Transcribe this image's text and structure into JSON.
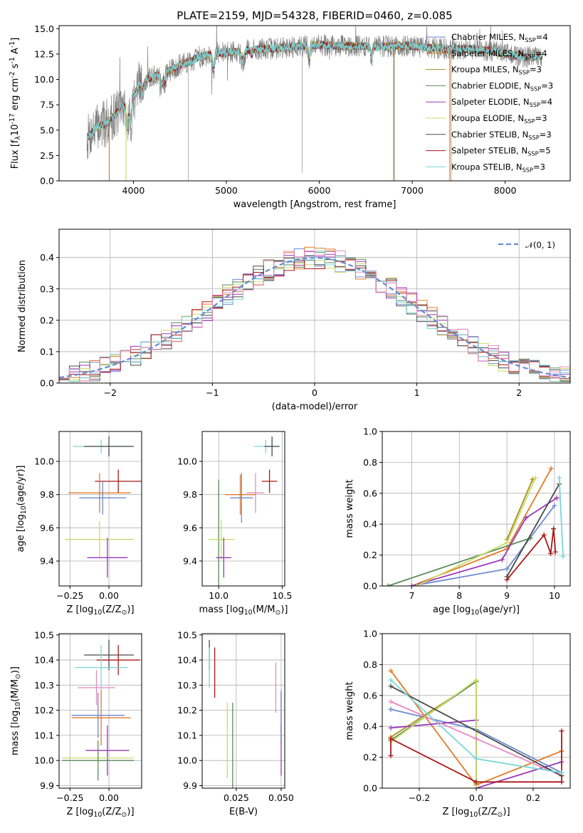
{
  "chart_data": [
    {
      "id": "spectrum",
      "type": "line",
      "title": "PLATE=2159, MJD=54328, FIBERID=0460, z=0.085",
      "xlabel": "wavelength [Angstrom, rest frame]",
      "ylabel": "Flux [f$_{\\lambda}$10$^{-17}$ erg cm$^{-2}$ s$^{-1}$ A$^{-1}$]",
      "xlim": [
        3200,
        8700
      ],
      "ylim": [
        0,
        15.3
      ],
      "xticks": [
        4000,
        5000,
        6000,
        7000,
        8000
      ],
      "xtick_labels": [
        "4000",
        "5000",
        "6000",
        "7000",
        "8000"
      ],
      "yticks": [
        0,
        2.5,
        5,
        7.5,
        10,
        12.5,
        15
      ],
      "ytick_labels": [
        "0.0",
        "2.5",
        "5.0",
        "7.5",
        "10.0",
        "12.5",
        "15.0"
      ],
      "continuum": [
        [
          3500,
          4.2
        ],
        [
          3600,
          5.3
        ],
        [
          3700,
          5.6
        ],
        [
          3800,
          6.6
        ],
        [
          3900,
          7.4
        ],
        [
          4000,
          9.0
        ],
        [
          4100,
          9.8
        ],
        [
          4200,
          10.2
        ],
        [
          4300,
          10.6
        ],
        [
          4400,
          10.9
        ],
        [
          4500,
          11.4
        ],
        [
          4600,
          11.7
        ],
        [
          4700,
          12.2
        ],
        [
          4800,
          12.4
        ],
        [
          4900,
          12.6
        ],
        [
          5000,
          12.6
        ],
        [
          5200,
          12.9
        ],
        [
          5400,
          13.0
        ],
        [
          5600,
          13.1
        ],
        [
          5800,
          13.3
        ],
        [
          6000,
          13.4
        ],
        [
          6200,
          13.3
        ],
        [
          6400,
          13.3
        ],
        [
          6600,
          13.2
        ],
        [
          6800,
          13.3
        ],
        [
          7000,
          13.3
        ],
        [
          7200,
          13.1
        ],
        [
          7400,
          13.0
        ],
        [
          7600,
          13.0
        ],
        [
          7800,
          12.9
        ],
        [
          8000,
          12.5
        ],
        [
          8200,
          12.2
        ],
        [
          8400,
          12.3
        ]
      ],
      "legend_position": "upper-right",
      "series": [
        {
          "name": "Chabrier MILES, N$_{SSP}$=4",
          "color": "#6a8ad0"
        },
        {
          "name": "Salpeter MILES, N$_{SSP}$=4",
          "color": "#e07b28"
        },
        {
          "name": "Kroupa MILES, N$_{SSP}$=3",
          "color": "#a89018"
        },
        {
          "name": "Chabrier ELODIE, N$_{SSP}$=3",
          "color": "#5a8a5a"
        },
        {
          "name": "Salpeter ELODIE, N$_{SSP}$=4",
          "color": "#9a38b8"
        },
        {
          "name": "Kroupa ELODIE, N$_{SSP}$=3",
          "color": "#c8dc6a"
        },
        {
          "name": "Chabrier STELIB, N$_{SSP}$=3",
          "color": "#4a4a4a"
        },
        {
          "name": "Salpeter STELIB, N$_{SSP}$=5",
          "color": "#aa1818"
        },
        {
          "name": "Kroupa STELIB, N$_{SSP}$=3",
          "color": "#7ad6d6"
        }
      ]
    },
    {
      "id": "residuals",
      "type": "line",
      "xlabel": "(data-model)/error",
      "ylabel": "Normed distribution",
      "xlim": [
        -2.5,
        2.5
      ],
      "ylim": [
        0,
        0.49
      ],
      "xticks": [
        -2,
        -1,
        0,
        1,
        2
      ],
      "xtick_labels": [
        "−2",
        "−1",
        "0",
        "1",
        "2"
      ],
      "yticks": [
        0,
        0.1,
        0.2,
        0.3,
        0.4
      ],
      "ytick_labels": [
        "0.0",
        "0.1",
        "0.2",
        "0.3",
        "0.4"
      ],
      "grid": true,
      "reference": {
        "name": "$\\mathcal{N}(0,1)$",
        "color": "#6a8ad0",
        "style": "dashed"
      }
    },
    {
      "id": "age-vs-Z",
      "type": "scatter",
      "xlabel": "Z [log$_{10}$(Z/Z$_\\odot$)]",
      "ylabel": "age  [log$_{10}$(age/yr)]",
      "xlim": [
        -0.32,
        0.21
      ],
      "ylim": [
        9.25,
        10.18
      ],
      "xticks": [
        -0.25,
        0.0
      ],
      "xtick_labels": [
        "−0.25",
        "0.00"
      ],
      "yticks": [
        9.4,
        9.6,
        9.8,
        10.0
      ],
      "ytick_labels": [
        "9.4",
        "9.6",
        "9.8",
        "10.0"
      ],
      "grid": true,
      "points": [
        {
          "x": -0.05,
          "y": 10.09,
          "xerr": 0.18,
          "yerr": 0.04,
          "color": "#7ad6d6"
        },
        {
          "x": 0.0,
          "y": 10.09,
          "xerr": 0.16,
          "yerr": 0.06,
          "color": "#4a4a4a"
        },
        {
          "x": 0.06,
          "y": 9.88,
          "xerr": 0.15,
          "yerr": 0.07,
          "color": "#aa1818"
        },
        {
          "x": -0.06,
          "y": 9.81,
          "xerr": 0.2,
          "yerr": 0.12,
          "color": "#e07b28"
        },
        {
          "x": -0.04,
          "y": 9.78,
          "xerr": 0.15,
          "yerr": 0.1,
          "color": "#6a8ad0"
        },
        {
          "x": -0.06,
          "y": 9.53,
          "xerr": 0.22,
          "yerr": 0.11,
          "color": "#c8dc6a"
        },
        {
          "x": -0.01,
          "y": 9.42,
          "xerr": 0.13,
          "yerr": 0.12,
          "color": "#9a38b8"
        }
      ]
    },
    {
      "id": "age-vs-mass",
      "type": "scatter",
      "xlabel": "mass [log$_{10}$(M/M$_\\odot$)]",
      "xlim": [
        9.87,
        10.52
      ],
      "ylim": [
        9.25,
        10.18
      ],
      "xticks": [
        10.0,
        10.5
      ],
      "xtick_labels": [
        "10.0",
        "10.5"
      ],
      "yticks": [
        9.4,
        9.6,
        9.8,
        10.0
      ],
      "ytick_labels": [
        "9.4",
        "9.6",
        "9.8",
        "10.0"
      ],
      "grid": true,
      "points": [
        {
          "x": 10.37,
          "y": 10.09,
          "xerr": 0.09,
          "yerr": 0.04,
          "color": "#7ad6d6"
        },
        {
          "x": 10.42,
          "y": 10.09,
          "xerr": 0.06,
          "yerr": 0.06,
          "color": "#4a4a4a"
        },
        {
          "x": 10.4,
          "y": 9.88,
          "xerr": 0.06,
          "yerr": 0.07,
          "color": "#aa1818"
        },
        {
          "x": 10.29,
          "y": 9.81,
          "xerr": 0.07,
          "yerr": 0.12,
          "color": "#e88ac0"
        },
        {
          "x": 10.17,
          "y": 9.8,
          "xerr": 0.12,
          "yerr": 0.12,
          "color": "#e07b28"
        },
        {
          "x": 10.18,
          "y": 9.78,
          "xerr": 0.09,
          "yerr": 0.15,
          "color": "#6a8ad0"
        },
        {
          "x": 10.0,
          "y": 9.53,
          "xerr": 0.02,
          "yerr": 0.36,
          "color": "#5a8a5a"
        },
        {
          "x": 10.02,
          "y": 9.53,
          "xerr": 0.1,
          "yerr": 0.12,
          "color": "#c8dc6a"
        },
        {
          "x": 10.04,
          "y": 9.42,
          "xerr": 0.06,
          "yerr": 0.12,
          "color": "#9a38b8"
        }
      ]
    },
    {
      "id": "massweight-vs-age",
      "type": "line",
      "xlabel": "age  [log$_{10}$(age/yr)]",
      "ylabel": "mass weight",
      "xlim": [
        6.38,
        10.33
      ],
      "ylim": [
        0,
        1.0
      ],
      "xticks": [
        7,
        8,
        9,
        10
      ],
      "xtick_labels": [
        "7",
        "8",
        "9",
        "10"
      ],
      "yticks": [
        0.0,
        0.2,
        0.4,
        0.6,
        0.8,
        1.0
      ],
      "ytick_labels": [
        "0.0",
        "0.2",
        "0.4",
        "0.6",
        "0.8",
        "1.0"
      ],
      "grid": true,
      "series": [
        {
          "color": "#6a8ad0",
          "x": [
            7.0,
            9.0,
            10.0
          ],
          "y": [
            0.0,
            0.11,
            0.52
          ]
        },
        {
          "color": "#e07b28",
          "x": [
            7.0,
            9.0,
            9.93
          ],
          "y": [
            0.0,
            0.24,
            0.76
          ]
        },
        {
          "color": "#a89018",
          "x": [
            9.0,
            9.54
          ],
          "y": [
            0.3,
            0.69
          ]
        },
        {
          "color": "#5a8a5a",
          "x": [
            6.5,
            9.5
          ],
          "y": [
            0.0,
            0.31
          ]
        },
        {
          "color": "#9a38b8",
          "x": [
            7.0,
            8.9,
            9.4,
            10.05
          ],
          "y": [
            0.0,
            0.17,
            0.44,
            0.57
          ]
        },
        {
          "color": "#c8dc6a",
          "x": [
            7.1,
            9.0,
            9.6
          ],
          "y": [
            0.0,
            0.28,
            0.7
          ]
        },
        {
          "color": "#4a4a4a",
          "x": [
            9.0,
            10.1
          ],
          "y": [
            0.06,
            0.66
          ]
        },
        {
          "color": "#aa1818",
          "x": [
            9.0,
            9.78,
            9.92,
            9.98,
            10.02
          ],
          "y": [
            0.04,
            0.33,
            0.21,
            0.37,
            0.22
          ]
        },
        {
          "color": "#7ad6d6",
          "x": [
            10.1,
            10.18
          ],
          "y": [
            0.7,
            0.19
          ]
        }
      ]
    },
    {
      "id": "mass-vs-Z",
      "type": "scatter",
      "xlabel": "Z [log$_{10}$(Z/Z$_\\odot$)]",
      "ylabel": "mass [log$_{10}$(M/M$_\\odot$)]",
      "xlim": [
        -0.32,
        0.21
      ],
      "ylim": [
        9.89,
        10.505
      ],
      "xticks": [
        -0.25,
        0.0
      ],
      "xtick_labels": [
        "−0.25",
        "0.00"
      ],
      "yticks": [
        9.9,
        10.0,
        10.1,
        10.2,
        10.3,
        10.4,
        10.5
      ],
      "ytick_labels": [
        "9.9",
        "10.0",
        "10.1",
        "10.2",
        "10.3",
        "10.4",
        "10.5"
      ],
      "grid": true,
      "points": [
        {
          "x": 0.0,
          "y": 10.42,
          "xerr": 0.16,
          "yerr": 0.06,
          "color": "#4a4a4a"
        },
        {
          "x": 0.06,
          "y": 10.4,
          "xerr": 0.14,
          "yerr": 0.06,
          "color": "#aa1818"
        },
        {
          "x": -0.05,
          "y": 10.37,
          "xerr": 0.17,
          "yerr": 0.09,
          "color": "#7ad6d6"
        },
        {
          "x": -0.08,
          "y": 10.29,
          "xerr": 0.12,
          "yerr": 0.07,
          "color": "#e88ac0"
        },
        {
          "x": -0.07,
          "y": 10.18,
          "xerr": 0.17,
          "yerr": 0.09,
          "color": "#6a8ad0"
        },
        {
          "x": -0.05,
          "y": 10.17,
          "xerr": 0.19,
          "yerr": 0.11,
          "color": "#e07b28"
        },
        {
          "x": -0.01,
          "y": 10.04,
          "xerr": 0.14,
          "yerr": 0.1,
          "color": "#9a38b8"
        },
        {
          "x": -0.07,
          "y": 10.01,
          "xerr": 0.23,
          "yerr": 0.02,
          "color": "#c8dc6a"
        },
        {
          "x": -0.07,
          "y": 10.0,
          "xerr": 0.23,
          "yerr": 0.08,
          "color": "#5a8a5a"
        }
      ]
    },
    {
      "id": "mass-vs-EBV",
      "type": "scatter",
      "xlabel": "E(B-V)",
      "xlim": [
        0.006,
        0.052
      ],
      "ylim": [
        9.89,
        10.505
      ],
      "xticks": [
        0.025,
        0.05
      ],
      "xtick_labels": [
        "0.025",
        "0.050"
      ],
      "yticks": [
        9.9,
        10.0,
        10.1,
        10.2,
        10.3,
        10.4,
        10.5
      ],
      "ytick_labels": [
        "9.9",
        "10.0",
        "10.1",
        "10.2",
        "10.3",
        "10.4",
        "10.5"
      ],
      "grid": true,
      "points": [
        {
          "x": 0.01,
          "y": 10.42,
          "yerr": 0.06,
          "color": "#4a4a4a"
        },
        {
          "x": 0.01,
          "y": 10.37,
          "yerr": 0.08,
          "color": "#7ad6d6"
        },
        {
          "x": 0.013,
          "y": 10.35,
          "yerr": 0.1,
          "color": "#aa1818"
        },
        {
          "x": 0.02,
          "y": 10.08,
          "yerr": 0.15,
          "color": "#c8dc6a"
        },
        {
          "x": 0.023,
          "y": 10.05,
          "yerr": 0.18,
          "color": "#5a8a5a"
        },
        {
          "x": 0.047,
          "y": 10.29,
          "yerr": 0.1,
          "color": "#e88ac0"
        },
        {
          "x": 0.05,
          "y": 10.17,
          "yerr": 0.1,
          "color": "#e07b28"
        },
        {
          "x": 0.05,
          "y": 10.04,
          "yerr": 0.1,
          "color": "#9a38b8"
        },
        {
          "x": 0.05,
          "y": 10.18,
          "yerr": 0.1,
          "color": "#6a8ad0"
        }
      ]
    },
    {
      "id": "massweight-vs-Z",
      "type": "line",
      "xlabel": "Z [log$_{10}$(Z/Z$_\\odot$)]",
      "ylabel": "mass weight",
      "xlim": [
        -0.33,
        0.33
      ],
      "ylim": [
        0,
        1.0
      ],
      "xticks": [
        -0.2,
        0.0,
        0.2
      ],
      "xtick_labels": [
        "−0.2",
        "0.0",
        "0.2"
      ],
      "yticks": [
        0.0,
        0.2,
        0.4,
        0.6,
        0.8,
        1.0
      ],
      "ytick_labels": [
        "0.0",
        "0.2",
        "0.4",
        "0.6",
        "0.8",
        "1.0"
      ],
      "grid": true,
      "series": [
        {
          "color": "#6a8ad0",
          "x": [
            -0.3,
            0.0,
            0.3
          ],
          "y": [
            0.51,
            0.38,
            0.1
          ]
        },
        {
          "color": "#e07b28",
          "x": [
            -0.3,
            0.0,
            0.3
          ],
          "y": [
            0.76,
            0.02,
            0.24
          ]
        },
        {
          "color": "#a89018",
          "x": [
            -0.3,
            0.0,
            0.0
          ],
          "y": [
            0.33,
            0.69,
            0.03
          ]
        },
        {
          "color": "#5a8a5a",
          "x": [
            -0.3,
            0.0,
            0.0
          ],
          "y": [
            0.31,
            0.69,
            0.0
          ]
        },
        {
          "color": "#9a38b8",
          "x": [
            -0.3,
            0.0,
            0.0,
            0.3
          ],
          "y": [
            0.39,
            0.44,
            0.0,
            0.17
          ]
        },
        {
          "color": "#c8dc6a",
          "x": [
            -0.3,
            0.0,
            0.0
          ],
          "y": [
            0.3,
            0.7,
            0.0
          ]
        },
        {
          "color": "#e88ac0",
          "x": [
            -0.3,
            0.0,
            0.3
          ],
          "y": [
            0.56,
            0.32,
            0.08
          ]
        },
        {
          "color": "#4a4a4a",
          "x": [
            -0.3,
            0.3
          ],
          "y": [
            0.66,
            0.08
          ]
        },
        {
          "color": "#aa1818",
          "x": [
            -0.3,
            -0.3,
            0.0,
            0.3,
            0.3
          ],
          "y": [
            0.21,
            0.32,
            0.04,
            0.04,
            0.37
          ]
        },
        {
          "color": "#7ad6d6",
          "x": [
            -0.3,
            0.0,
            0.3
          ],
          "y": [
            0.7,
            0.19,
            0.1
          ]
        }
      ]
    }
  ]
}
